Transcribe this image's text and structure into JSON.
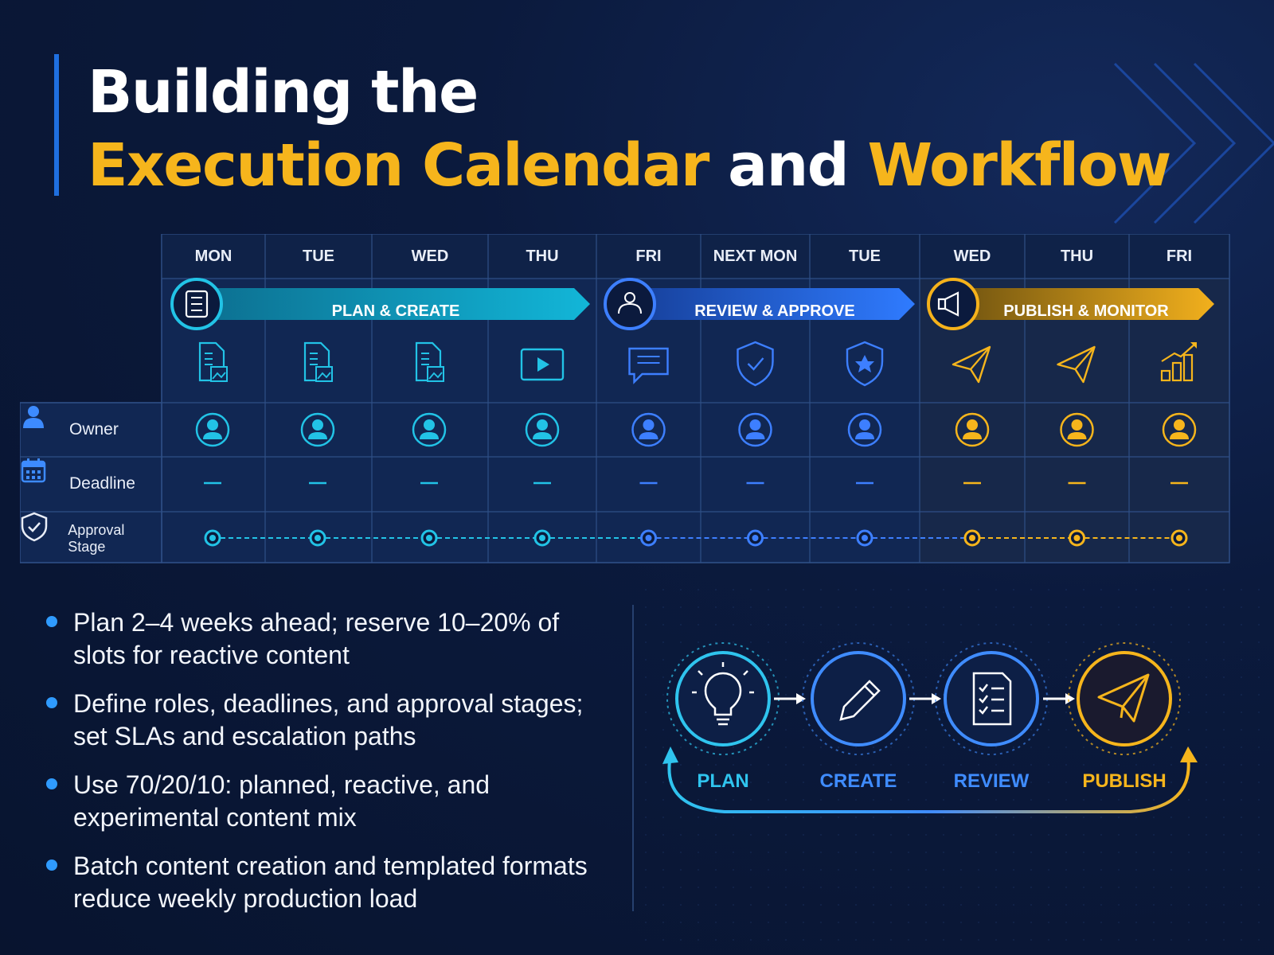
{
  "title": {
    "line1": "Building the",
    "highlight1": "Execution Calendar",
    "connector": " and ",
    "highlight2": "Workflow"
  },
  "calendar": {
    "days": [
      "MON",
      "TUE",
      "WED",
      "THU",
      "FRI",
      "NEXT MON",
      "TUE",
      "WED",
      "THU",
      "FRI"
    ],
    "phases": [
      {
        "label": "PLAN & CREATE",
        "icon": "clipboard-icon",
        "color": "#22c3e6"
      },
      {
        "label": "REVIEW & APPROVE",
        "icon": "team-icon",
        "color": "#3d7fff"
      },
      {
        "label": "PUBLISH & MONITOR",
        "icon": "megaphone-icon",
        "color": "#f5b21b"
      }
    ],
    "day_icons": [
      "document-image-icon",
      "document-image-icon",
      "document-image-icon",
      "video-play-icon",
      "chat-icon",
      "shield-check-icon",
      "shield-star-icon",
      "paper-plane-icon",
      "paper-plane-icon",
      "bar-chart-icon"
    ],
    "rows": [
      {
        "label": "Owner",
        "icon": "person-icon"
      },
      {
        "label": "Deadline",
        "icon": "calendar-icon"
      },
      {
        "label": "Approval Stage",
        "icon": "shield-check-icon"
      }
    ]
  },
  "bullets": [
    "Plan 2–4 weeks ahead; reserve 10–20% of slots for reactive content",
    "Define roles, deadlines, and approval stages; set SLAs and escalation paths",
    "Use 70/20/10: planned, reactive, and experimental content mix",
    "Batch content creation and templated formats reduce weekly production load"
  ],
  "workflow": [
    {
      "label": "PLAN",
      "icon": "lightbulb-icon",
      "color": "#2fc4ee"
    },
    {
      "label": "CREATE",
      "icon": "pencil-icon",
      "color": "#3f8cff"
    },
    {
      "label": "REVIEW",
      "icon": "checklist-icon",
      "color": "#3f8cff"
    },
    {
      "label": "PUBLISH",
      "icon": "paper-plane-icon",
      "color": "#f6b51c"
    }
  ],
  "colors": {
    "teal": "#22c3e6",
    "blue": "#3d7fff",
    "gold": "#f6b51c",
    "background": "#0b1a3d"
  }
}
